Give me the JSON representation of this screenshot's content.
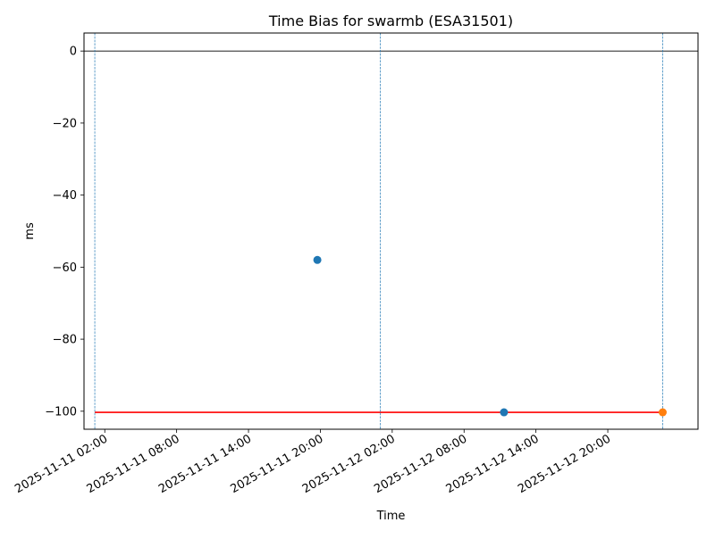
{
  "chart_data": {
    "type": "scatter",
    "title": "Time Bias for swarmb (ESA31501)",
    "xlabel": "Time",
    "ylabel": "ms",
    "x_is_datetime": true,
    "xlim": [
      "2025-11-11T00:16:00",
      "2025-11-13T03:32:00"
    ],
    "ylim": [
      -105,
      5
    ],
    "yticks": [
      0,
      -20,
      -40,
      -60,
      -80,
      -100
    ],
    "ytick_labels": [
      "0",
      "−20",
      "−40",
      "−60",
      "−80",
      "−100"
    ],
    "xticks": [
      "2025-11-11T02:00:00",
      "2025-11-11T08:00:00",
      "2025-11-11T14:00:00",
      "2025-11-11T20:00:00",
      "2025-11-12T02:00:00",
      "2025-11-12T08:00:00",
      "2025-11-12T14:00:00",
      "2025-11-12T20:00:00"
    ],
    "xtick_labels": [
      "2025-11-11 02:00",
      "2025-11-11 08:00",
      "2025-11-11 14:00",
      "2025-11-11 20:00",
      "2025-11-12 02:00",
      "2025-11-12 08:00",
      "2025-11-12 14:00",
      "2025-11-12 20:00"
    ],
    "grid": false,
    "series": [
      {
        "color": "#1f77b4",
        "points": [
          {
            "x": "2025-11-11T19:45:00",
            "y": -58
          },
          {
            "x": "2025-11-12T11:20:00",
            "y": -100.3
          }
        ]
      },
      {
        "color": "#ff7f0e",
        "points": [
          {
            "x": "2025-11-13T00:35:00",
            "y": -100.3
          }
        ]
      }
    ],
    "reference_lines": [
      {
        "orientation": "horizontal",
        "y": 0,
        "color": "#000000",
        "style": "solid"
      },
      {
        "orientation": "horizontal",
        "y": -100.3,
        "x_start": "2025-11-11T01:10:00",
        "x_end": "2025-11-13T00:35:00",
        "color": "#ff0000",
        "style": "solid"
      },
      {
        "orientation": "vertical",
        "x": "2025-11-11T01:10:00",
        "color": "#1f77b4",
        "style": "dashed"
      },
      {
        "orientation": "vertical",
        "x": "2025-11-12T01:00:00",
        "color": "#1f77b4",
        "style": "dashed"
      },
      {
        "orientation": "vertical",
        "x": "2025-11-13T00:35:00",
        "color": "#1f77b4",
        "style": "dashed"
      }
    ]
  }
}
